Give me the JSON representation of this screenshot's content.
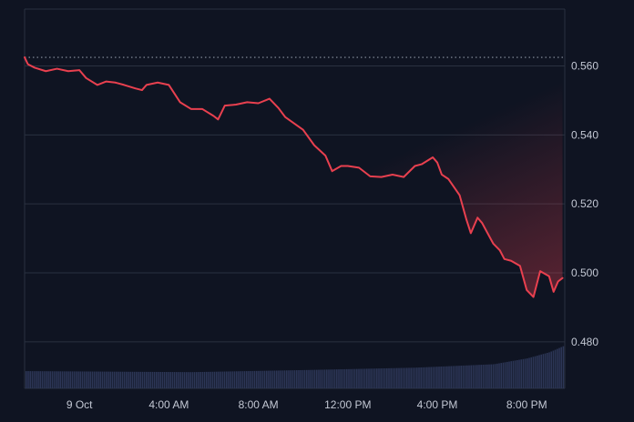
{
  "chart_data": {
    "type": "line",
    "title": "",
    "xlabel": "",
    "ylabel": "",
    "y_ticks": [
      "0.560",
      "0.540",
      "0.520",
      "0.500",
      "0.480"
    ],
    "y_tick_values": [
      0.56,
      0.54,
      0.52,
      0.5,
      0.48
    ],
    "x_ticks": [
      "9 Oct",
      "4:00 AM",
      "8:00 AM",
      "12:00 PM",
      "4:00 PM",
      "8:00 PM"
    ],
    "x_tick_hours": [
      0,
      4,
      8,
      12,
      16,
      20
    ],
    "x_range_hours": [
      -2.45,
      21.7
    ],
    "ylim": [
      0.4665,
      0.5765
    ],
    "reference_price": 0.5625,
    "grid": true,
    "colors": {
      "line": "#e8404f",
      "reference": "#8a93a3",
      "volume": "#2c3656",
      "grid": "#2a3140",
      "background": "#0f1422"
    },
    "series": [
      {
        "x": [
          -2.45,
          -2.3,
          -2.0,
          -1.5,
          -1.0,
          -0.5,
          0.0,
          0.3,
          0.8,
          1.2,
          1.6,
          2.0,
          2.5,
          2.8,
          3.0,
          3.5,
          4.0,
          4.5,
          5.0,
          5.5,
          6.0,
          6.2,
          6.5,
          7.0,
          7.5,
          8.0,
          8.5,
          8.9,
          9.2,
          9.5,
          10.0,
          10.5,
          11.0,
          11.3,
          11.7,
          12.0,
          12.5,
          13.0,
          13.5,
          14.0,
          14.5,
          15.0,
          15.3,
          15.8,
          16.0,
          16.2,
          16.5,
          17.0,
          17.3,
          17.5,
          17.8,
          18.0,
          18.5,
          18.8,
          19.0,
          19.3,
          19.7,
          20.0,
          20.3,
          20.6,
          21.0,
          21.2,
          21.4,
          21.6
        ],
        "values": [
          0.5625,
          0.5605,
          0.5595,
          0.5585,
          0.5592,
          0.5585,
          0.5588,
          0.5565,
          0.5545,
          0.5555,
          0.5552,
          0.5545,
          0.5535,
          0.553,
          0.5545,
          0.5552,
          0.5545,
          0.5495,
          0.5475,
          0.5475,
          0.5455,
          0.5445,
          0.5485,
          0.5488,
          0.5495,
          0.5492,
          0.5505,
          0.5478,
          0.5452,
          0.5438,
          0.5415,
          0.537,
          0.534,
          0.5295,
          0.531,
          0.531,
          0.5305,
          0.528,
          0.5278,
          0.5285,
          0.5278,
          0.531,
          0.5315,
          0.5335,
          0.532,
          0.5285,
          0.5272,
          0.5225,
          0.5155,
          0.5115,
          0.516,
          0.5145,
          0.5085,
          0.5065,
          0.504,
          0.5035,
          0.502,
          0.495,
          0.493,
          0.5005,
          0.499,
          0.4945,
          0.4975,
          0.4985
        ]
      }
    ],
    "volume": {
      "x": [
        -2.45,
        5.0,
        10.0,
        15.0,
        18.5,
        20.0,
        21.0,
        21.7
      ],
      "values": [
        0.4715,
        0.4712,
        0.4718,
        0.4725,
        0.4735,
        0.4752,
        0.477,
        0.479
      ]
    }
  }
}
